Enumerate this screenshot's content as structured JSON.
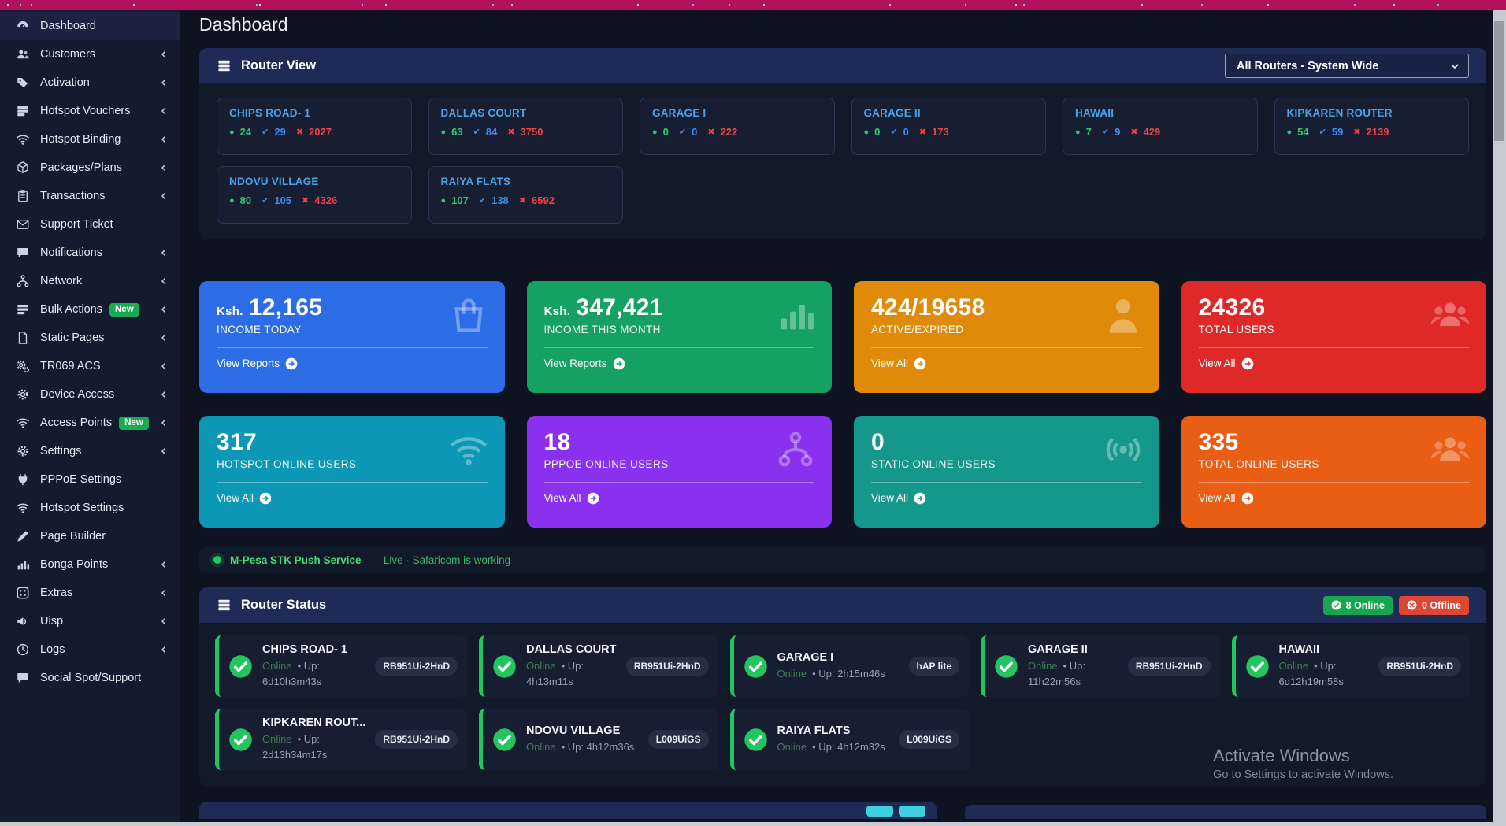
{
  "page_title": "Dashboard",
  "sidebar": {
    "items": [
      {
        "label": "Dashboard",
        "icon": "gauge",
        "active": true
      },
      {
        "label": "Customers",
        "icon": "users",
        "chevron": true
      },
      {
        "label": "Activation",
        "icon": "tags",
        "chevron": true
      },
      {
        "label": "Hotspot Vouchers",
        "icon": "rows",
        "chevron": true
      },
      {
        "label": "Hotspot Binding",
        "icon": "wifi",
        "chevron": true
      },
      {
        "label": "Packages/Plans",
        "icon": "cube",
        "chevron": true
      },
      {
        "label": "Transactions",
        "icon": "clipboard",
        "chevron": true
      },
      {
        "label": "Support Ticket",
        "icon": "envelope"
      },
      {
        "label": "Notifications",
        "icon": "chat",
        "chevron": true
      },
      {
        "label": "Network",
        "icon": "sitemap",
        "chevron": true
      },
      {
        "label": "Bulk Actions",
        "icon": "rows",
        "chevron": true,
        "badge": "New"
      },
      {
        "label": "Static Pages",
        "icon": "file",
        "chevron": true
      },
      {
        "label": "TR069 ACS",
        "icon": "gears",
        "chevron": true
      },
      {
        "label": "Device Access",
        "icon": "gear",
        "chevron": true
      },
      {
        "label": "Access Points",
        "icon": "wifi",
        "chevron": true,
        "badge": "New"
      },
      {
        "label": "Settings",
        "icon": "gear",
        "chevron": true
      },
      {
        "label": "PPPoE Settings",
        "icon": "plug"
      },
      {
        "label": "Hotspot Settings",
        "icon": "wifi"
      },
      {
        "label": "Page Builder",
        "icon": "pen"
      },
      {
        "label": "Bonga Points",
        "icon": "chart",
        "chevron": true
      },
      {
        "label": "Extras",
        "icon": "dice",
        "chevron": true
      },
      {
        "label": "Uisp",
        "icon": "megaphone",
        "chevron": true
      },
      {
        "label": "Logs",
        "icon": "clock",
        "chevron": true
      },
      {
        "label": "Social Spot/Support",
        "icon": "chat"
      }
    ]
  },
  "router_view": {
    "title": "Router View",
    "selector_value": "All Routers - System Wide",
    "routers": [
      {
        "name": "CHIPS ROAD- 1",
        "online": "24",
        "active": "29",
        "expired": "2027"
      },
      {
        "name": "DALLAS COURT",
        "online": "63",
        "active": "84",
        "expired": "3750"
      },
      {
        "name": "GARAGE I",
        "online": "0",
        "active": "0",
        "expired": "222"
      },
      {
        "name": "GARAGE II",
        "online": "0",
        "active": "0",
        "expired": "173"
      },
      {
        "name": "HAWAII",
        "online": "7",
        "active": "9",
        "expired": "429"
      },
      {
        "name": "KIPKAREN ROUTER",
        "online": "54",
        "active": "59",
        "expired": "2139"
      },
      {
        "name": "NDOVU VILLAGE",
        "online": "80",
        "active": "105",
        "expired": "4326"
      },
      {
        "name": "RAIYA FLATS",
        "online": "107",
        "active": "138",
        "expired": "6592"
      }
    ]
  },
  "stat_cards": [
    {
      "prefix": "Ksh.",
      "value": "12,165",
      "label": "INCOME TODAY",
      "link": "View Reports",
      "color": "#2c6de6",
      "icon": "bag"
    },
    {
      "prefix": "Ksh.",
      "value": "347,421",
      "label": "INCOME THIS MONTH",
      "link": "View Reports",
      "color": "#14a161",
      "icon": "chart"
    },
    {
      "value": "424/19658",
      "label": "ACTIVE/EXPIRED",
      "link": "View All",
      "color": "#e08a0a",
      "icon": "person"
    },
    {
      "value": "24326",
      "label": "TOTAL USERS",
      "link": "View All",
      "color": "#df2828",
      "icon": "group"
    },
    {
      "value": "317",
      "label": "HOTSPOT ONLINE USERS",
      "link": "View All",
      "color": "#0b97b5",
      "icon": "wifi"
    },
    {
      "value": "18",
      "label": "PPPOE ONLINE USERS",
      "link": "View All",
      "color": "#8a30ef",
      "icon": "sitemap"
    },
    {
      "value": "0",
      "label": "STATIC ONLINE USERS",
      "link": "View All",
      "color": "#159889",
      "icon": "broadcast"
    },
    {
      "value": "335",
      "label": "TOTAL ONLINE USERS",
      "link": "View All",
      "color": "#e95d15",
      "icon": "group"
    }
  ],
  "mpesa": {
    "service": "M-Pesa STK Push Service",
    "status": "— Live · Safaricom is working"
  },
  "router_status": {
    "title": "Router Status",
    "online_badge": "8 Online",
    "offline_badge": "0 Offline",
    "routers": [
      {
        "name": "CHIPS ROAD- 1",
        "status": "Online",
        "uptime": "• Up: 6d10h3m43s",
        "model": "RB951Ui-2HnD"
      },
      {
        "name": "DALLAS COURT",
        "status": "Online",
        "uptime": "• Up: 4h13m11s",
        "model": "RB951Ui-2HnD"
      },
      {
        "name": "GARAGE I",
        "status": "Online",
        "uptime": "• Up: 2h15m46s",
        "model": "hAP lite"
      },
      {
        "name": "GARAGE II",
        "status": "Online",
        "uptime": "• Up: 11h22m56s",
        "model": "RB951Ui-2HnD"
      },
      {
        "name": "HAWAII",
        "status": "Online",
        "uptime": "• Up: 6d12h19m58s",
        "model": "RB951Ui-2HnD"
      },
      {
        "name": "KIPKAREN ROUT...",
        "status": "Online",
        "uptime": "• Up: 2d13h34m17s",
        "model": "RB951Ui-2HnD"
      },
      {
        "name": "NDOVU VILLAGE",
        "status": "Online",
        "uptime": "• Up: 4h12m36s",
        "model": "L009UiGS"
      },
      {
        "name": "RAIYA FLATS",
        "status": "Online",
        "uptime": "• Up: 4h12m32s",
        "model": "L009UiGS"
      }
    ]
  },
  "watermark": {
    "line1": "Activate Windows",
    "line2": "Go to Settings to activate Windows."
  }
}
